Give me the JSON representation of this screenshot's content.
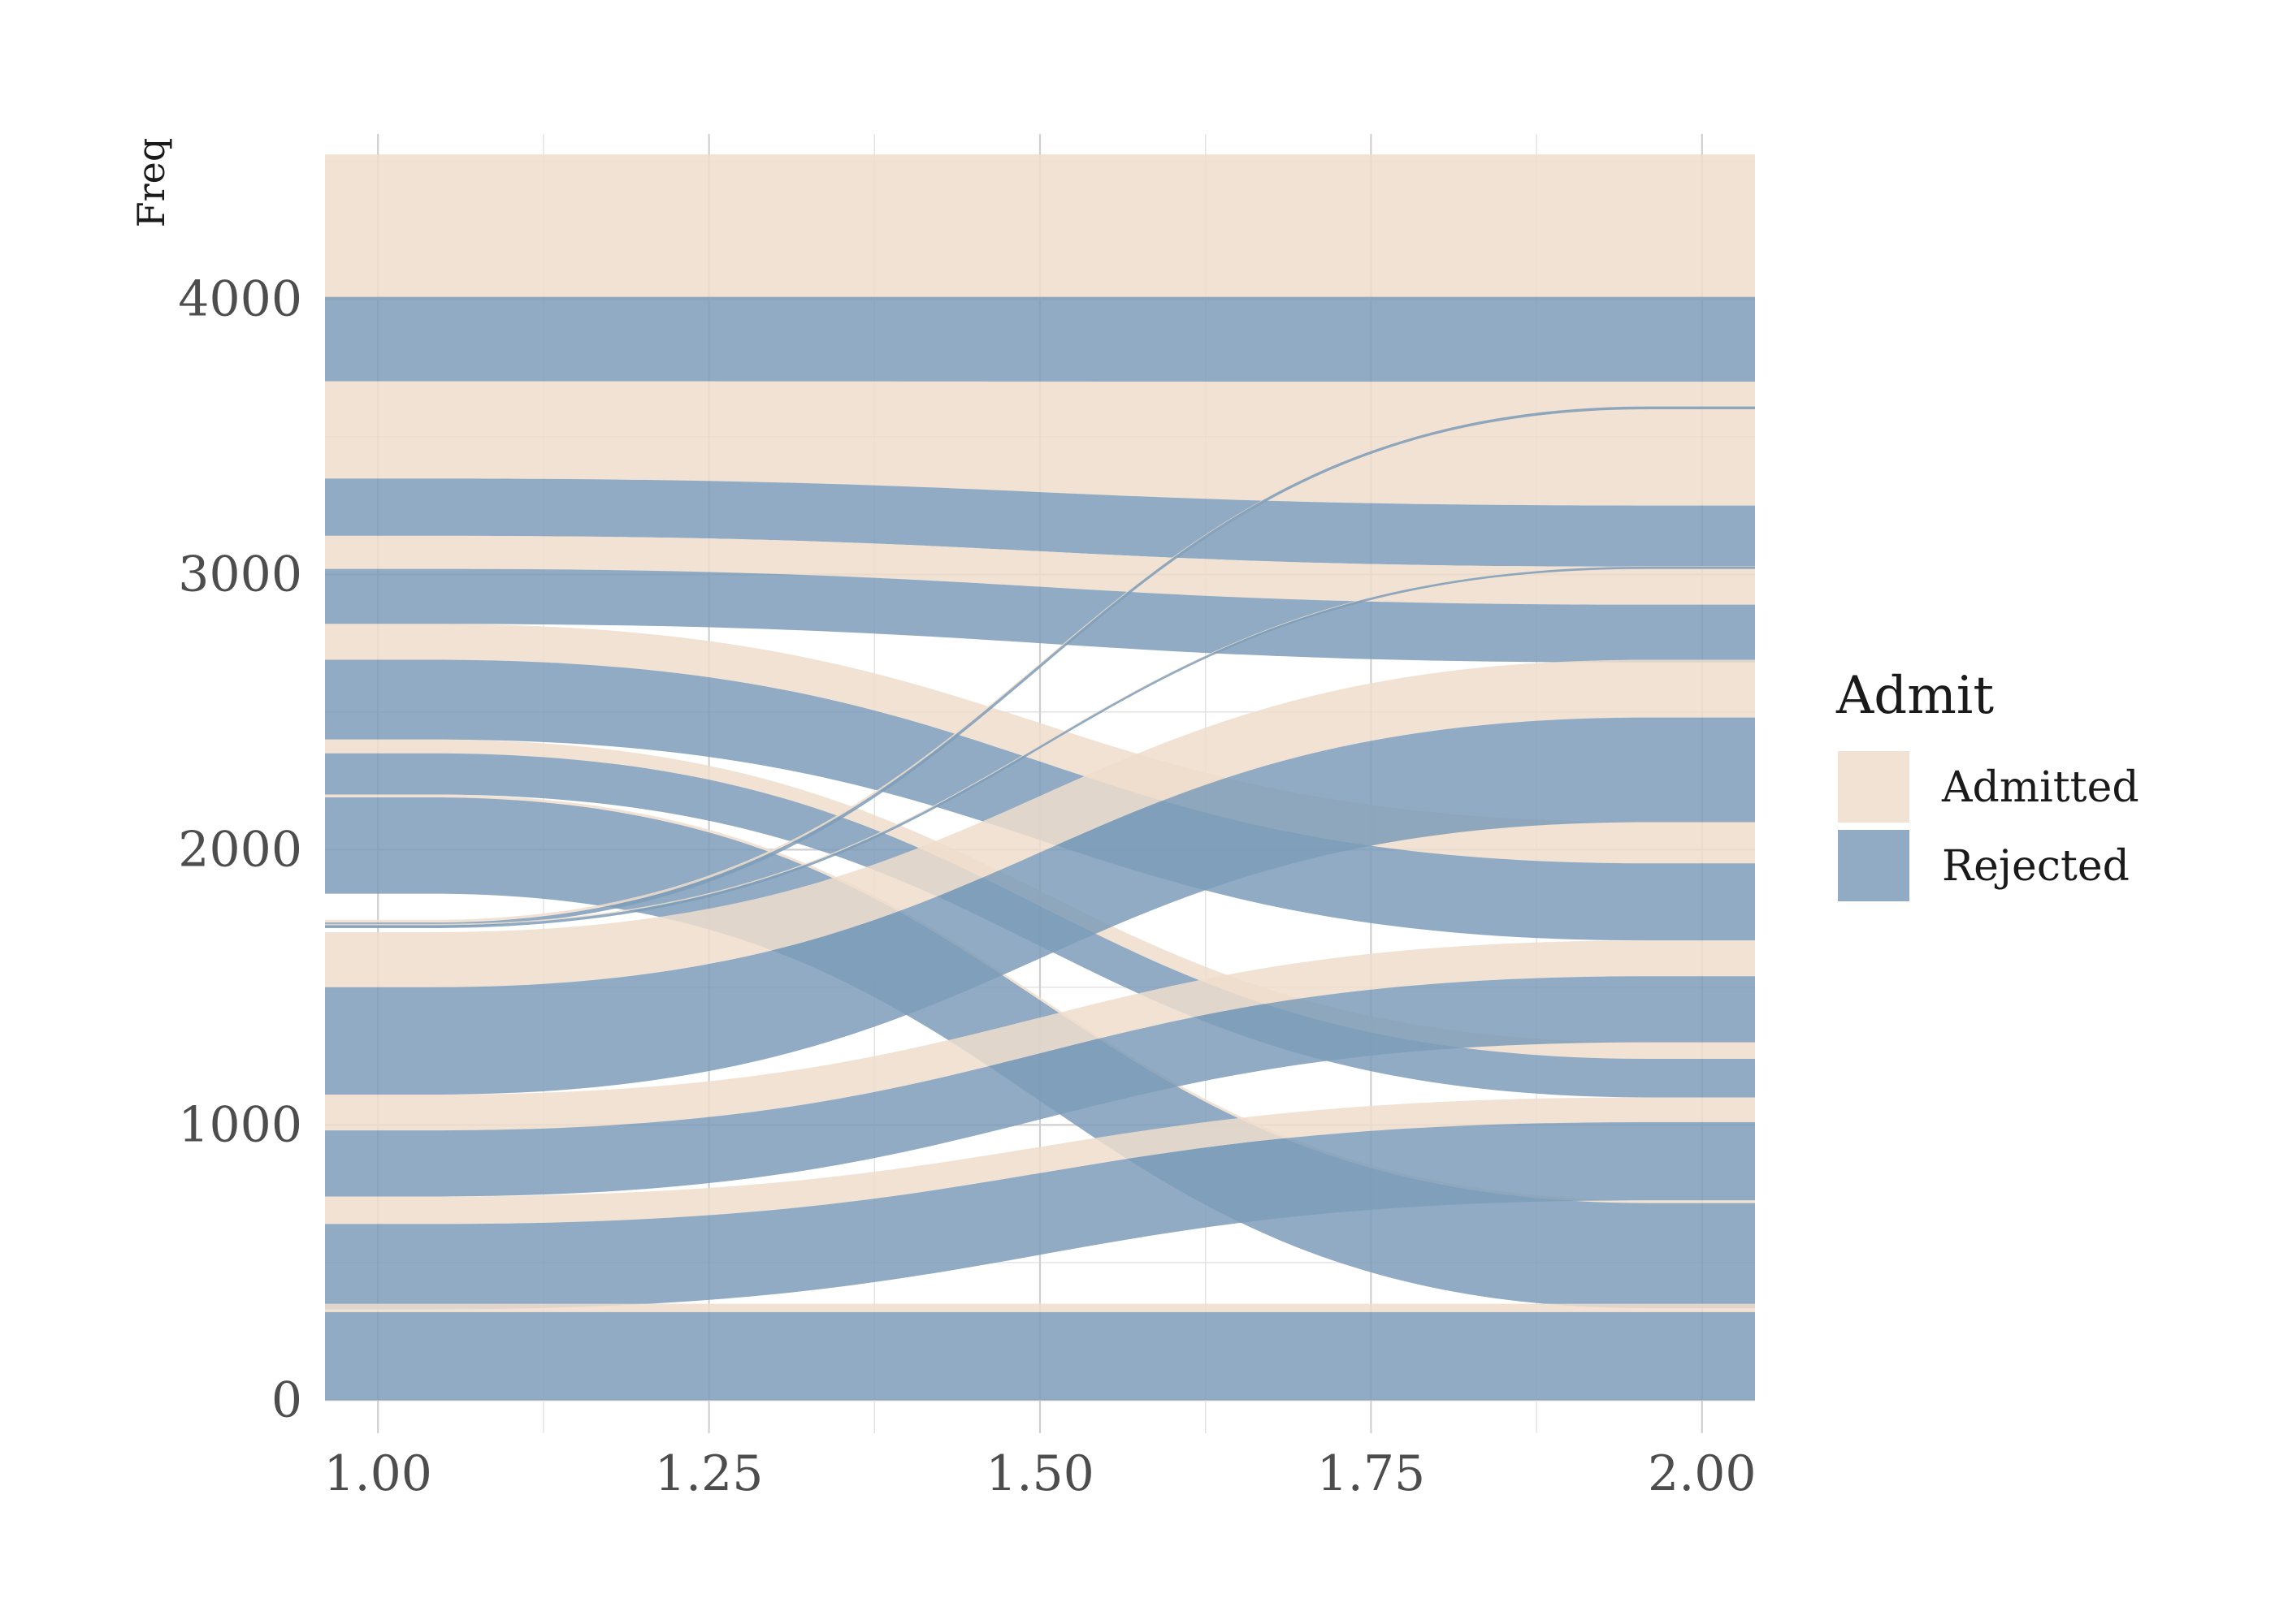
{
  "chart_data": {
    "type": "alluvial",
    "title": "",
    "xlabel": "",
    "ylabel": "Freq",
    "xlim": [
      0.96,
      2.04
    ],
    "ylim": [
      -120,
      4600
    ],
    "x_ticks": [
      1.0,
      1.25,
      1.5,
      1.75,
      2.0
    ],
    "x_tick_labels": [
      "1.00",
      "1.25",
      "1.50",
      "1.75",
      "2.00"
    ],
    "y_ticks": [
      0,
      1000,
      2000,
      3000,
      4000
    ],
    "y_tick_labels": [
      "0",
      "1000",
      "2000",
      "3000",
      "4000"
    ],
    "grid": true,
    "legend": {
      "title": "Admit",
      "position": "right",
      "entries": [
        {
          "label": "Admitted",
          "color": "#eeddcd"
        },
        {
          "label": "Rejected",
          "color": "#7d9cb8"
        }
      ]
    },
    "colors": {
      "Admitted": "#eeddcd",
      "Rejected": "#7d9cb8"
    },
    "ribbon_opacity": 0.85,
    "flows": [
      {
        "admit": "Admitted",
        "y0": [
          4000,
          4526
        ],
        "y1": [
          4000,
          4526
        ]
      },
      {
        "admit": "Rejected",
        "y0": [
          3700,
          4008
        ],
        "y1": [
          3700,
          4008
        ]
      },
      {
        "admit": "Admitted",
        "y0": [
          3348,
          3702
        ],
        "y1": [
          3250,
          3700
        ]
      },
      {
        "admit": "Rejected",
        "y0": [
          3140,
          3348
        ],
        "y1": [
          3028,
          3250
        ]
      },
      {
        "admit": "Admitted",
        "y0": [
          3020,
          3140
        ],
        "y1": [
          2890,
          3028
        ]
      },
      {
        "admit": "Rejected",
        "y0": [
          2820,
          3020
        ],
        "y1": [
          2680,
          2890
        ]
      },
      {
        "admit": "Admitted",
        "y0": [
          2690,
          2820
        ],
        "y1": [
          1950,
          2100
        ]
      },
      {
        "admit": "Rejected",
        "y0": [
          2400,
          2690
        ],
        "y1": [
          1670,
          1950
        ]
      },
      {
        "admit": "Admitted",
        "y0": [
          2350,
          2400
        ],
        "y1": [
          1240,
          1300
        ]
      },
      {
        "admit": "Rejected",
        "y0": [
          2200,
          2350
        ],
        "y1": [
          1100,
          1240
        ]
      },
      {
        "admit": "Admitted",
        "y0": [
          2190,
          2200
        ],
        "y1": [
          716,
          726
        ]
      },
      {
        "admit": "Rejected",
        "y0": [
          1840,
          2190
        ],
        "y1": [
          334,
          716
        ]
      },
      {
        "admit": "Admitted",
        "y0": [
          1735,
          1745
        ],
        "y1": [
          3600,
          3610
        ]
      },
      {
        "admit": "Rejected",
        "y0": [
          1720,
          1735
        ],
        "y1": [
          3600,
          3610
        ]
      },
      {
        "admit": "Admitted",
        "y0": [
          1725,
          1730
        ],
        "y1": [
          3025,
          3030
        ]
      },
      {
        "admit": "Rejected",
        "y0": [
          1715,
          1725
        ],
        "y1": [
          3020,
          3028
        ]
      },
      {
        "admit": "Admitted",
        "y0": [
          1500,
          1700
        ],
        "y1": [
          2480,
          2690
        ]
      },
      {
        "admit": "Rejected",
        "y0": [
          1110,
          1500
        ],
        "y1": [
          2100,
          2480
        ]
      },
      {
        "admit": "Admitted",
        "y0": [
          980,
          1110
        ],
        "y1": [
          1540,
          1670
        ]
      },
      {
        "admit": "Rejected",
        "y0": [
          740,
          980
        ],
        "y1": [
          1300,
          1540
        ]
      },
      {
        "admit": "Admitted",
        "y0": [
          640,
          740
        ],
        "y1": [
          1010,
          1100
        ]
      },
      {
        "admit": "Rejected",
        "y0": [
          330,
          640
        ],
        "y1": [
          726,
          1010
        ]
      },
      {
        "admit": "Admitted",
        "y0": [
          320,
          350
        ],
        "y1": [
          320,
          350
        ]
      },
      {
        "admit": "Rejected",
        "y0": [
          0,
          320
        ],
        "y1": [
          0,
          320
        ]
      }
    ]
  }
}
